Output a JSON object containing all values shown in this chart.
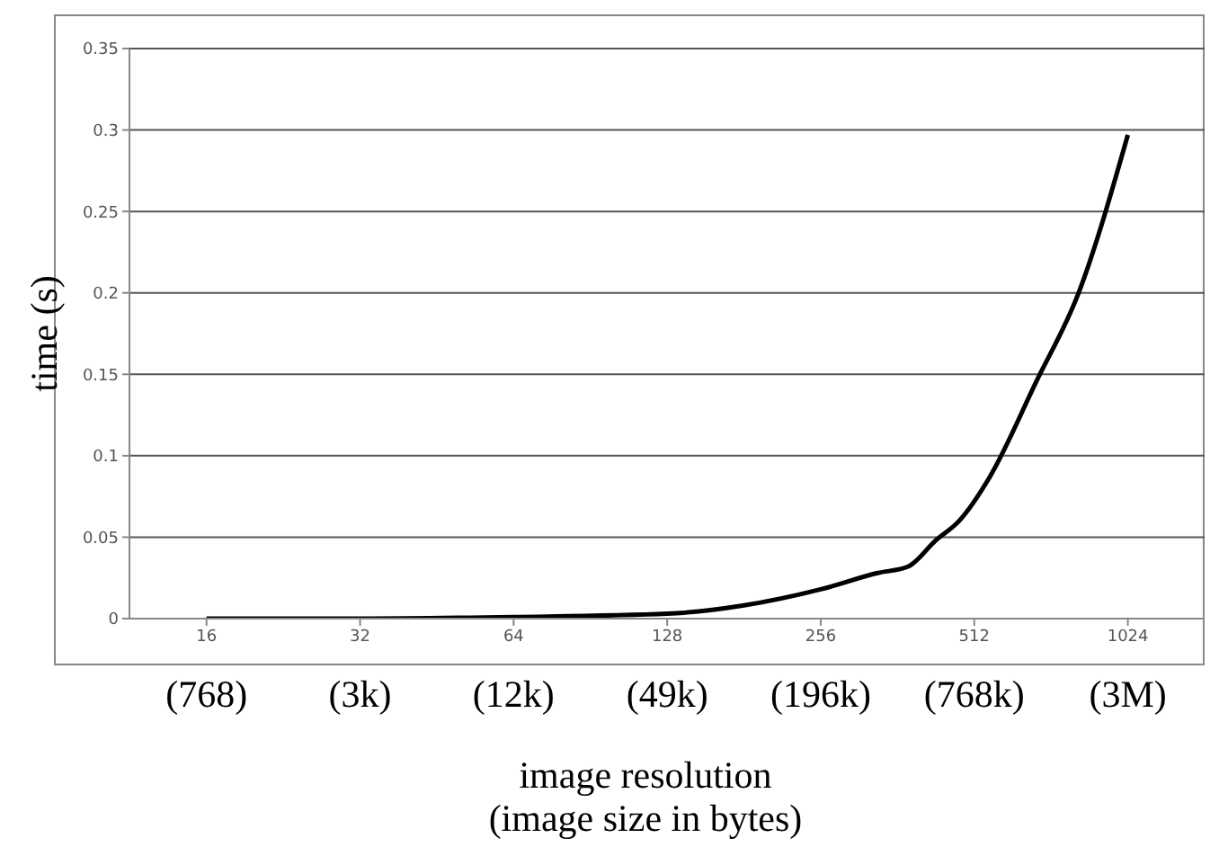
{
  "chart_data": {
    "type": "line",
    "xlabel": "image resolution\n(image size in bytes)",
    "ylabel": "time (s)",
    "x": [
      16,
      32,
      64,
      128,
      180,
      256,
      331,
      380,
      430,
      478,
      549,
      676,
      820,
      1024
    ],
    "series": [
      {
        "color": "#000000",
        "values": [
          0,
          0,
          0.001,
          0.003,
          0.008,
          0.018,
          0.028,
          0.032,
          0.048,
          0.06,
          0.087,
          0.145,
          0.2,
          0.297
        ]
      }
    ],
    "log": "x",
    "xlim": [
      11.3,
      1448
    ],
    "xticks": [
      16,
      32,
      64,
      128,
      256,
      512,
      1024
    ],
    "annotations": [
      "(768)",
      "(3k)",
      "(12k)",
      "(49k)",
      "(196k)",
      "(768k)",
      "(3M)"
    ],
    "ylim": [
      0,
      0.35
    ],
    "yticks": [
      0,
      0.05,
      0.1,
      0.15,
      0.2,
      0.25,
      0.3,
      0.35
    ],
    "grid": "y",
    "legend": false,
    "marker": "none",
    "line_style": "solid"
  }
}
